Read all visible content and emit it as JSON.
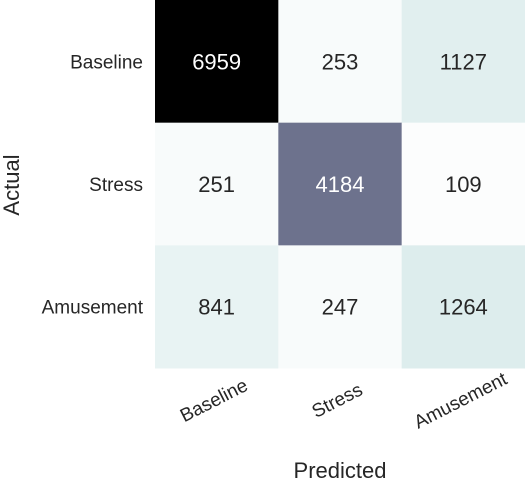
{
  "chart_data": {
    "type": "heatmap",
    "title": "",
    "xlabel": "Predicted",
    "ylabel": "Actual",
    "x_categories": [
      "Baseline",
      "Stress",
      "Amusement"
    ],
    "y_categories": [
      "Baseline",
      "Stress",
      "Amusement"
    ],
    "values": [
      [
        6959,
        253,
        1127
      ],
      [
        251,
        4184,
        109
      ],
      [
        841,
        247,
        1264
      ]
    ],
    "value_range": [
      0,
      6959
    ],
    "colormap": "bone_r",
    "colorbar": false,
    "grid": false
  }
}
